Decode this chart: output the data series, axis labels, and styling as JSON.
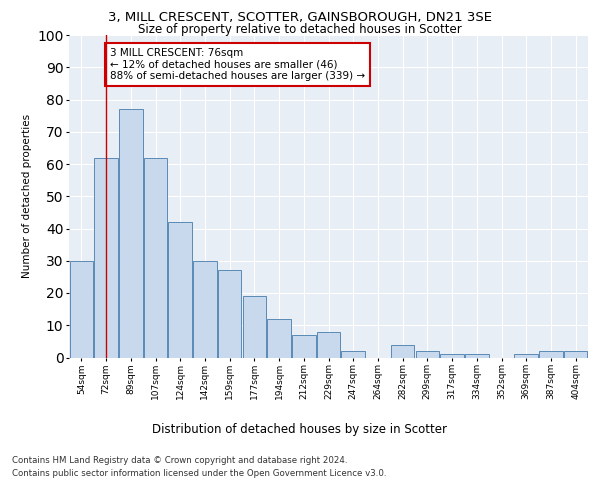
{
  "title": "3, MILL CRESCENT, SCOTTER, GAINSBOROUGH, DN21 3SE",
  "subtitle": "Size of property relative to detached houses in Scotter",
  "xlabel": "Distribution of detached houses by size in Scotter",
  "ylabel": "Number of detached properties",
  "categories": [
    "54sqm",
    "72sqm",
    "89sqm",
    "107sqm",
    "124sqm",
    "142sqm",
    "159sqm",
    "177sqm",
    "194sqm",
    "212sqm",
    "229sqm",
    "247sqm",
    "264sqm",
    "282sqm",
    "299sqm",
    "317sqm",
    "334sqm",
    "352sqm",
    "369sqm",
    "387sqm",
    "404sqm"
  ],
  "values": [
    30,
    62,
    77,
    62,
    42,
    30,
    27,
    19,
    12,
    7,
    8,
    2,
    0,
    4,
    2,
    1,
    1,
    0,
    1,
    2,
    2
  ],
  "bar_color": "#c9d9ed",
  "bar_edge_color": "#5a8ab5",
  "vline_x": 1,
  "vline_color": "#cc0000",
  "annotation_text": "3 MILL CRESCENT: 76sqm\n← 12% of detached houses are smaller (46)\n88% of semi-detached houses are larger (339) →",
  "annotation_box_color": "#ffffff",
  "annotation_box_edgecolor": "#cc0000",
  "ylim": [
    0,
    100
  ],
  "yticks": [
    0,
    10,
    20,
    30,
    40,
    50,
    60,
    70,
    80,
    90,
    100
  ],
  "bg_color": "#e8eef5",
  "footer_line1": "Contains HM Land Registry data © Crown copyright and database right 2024.",
  "footer_line2": "Contains public sector information licensed under the Open Government Licence v3.0."
}
